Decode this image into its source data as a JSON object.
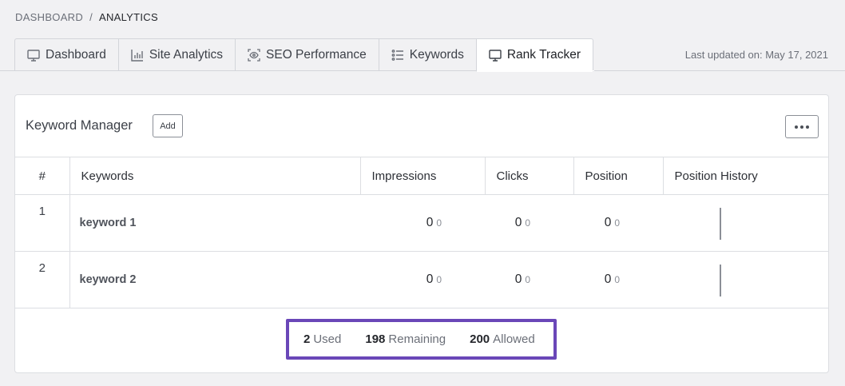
{
  "breadcrumb": {
    "parent": "DASHBOARD",
    "separator": "/",
    "current": "ANALYTICS"
  },
  "tabs": [
    {
      "label": "Dashboard",
      "icon": "monitor-icon"
    },
    {
      "label": "Site Analytics",
      "icon": "bar-chart-icon"
    },
    {
      "label": "SEO Performance",
      "icon": "eye-frame-icon"
    },
    {
      "label": "Keywords",
      "icon": "list-icon"
    },
    {
      "label": "Rank Tracker",
      "icon": "monitor-icon",
      "active": true
    }
  ],
  "last_updated": "Last updated on: May 17, 2021",
  "card": {
    "title": "Keyword Manager",
    "add_label": "Add",
    "more_icon": "more-dots-icon"
  },
  "table": {
    "headers": [
      "#",
      "Keywords",
      "Impressions",
      "Clicks",
      "Position",
      "Position History"
    ],
    "rows": [
      {
        "index": "1",
        "keyword": "keyword 1",
        "impressions": "0",
        "impressions_change": "0",
        "clicks": "0",
        "clicks_change": "0",
        "position": "0",
        "position_change": "0"
      },
      {
        "index": "2",
        "keyword": "keyword 2",
        "impressions": "0",
        "impressions_change": "0",
        "clicks": "0",
        "clicks_change": "0",
        "position": "0",
        "position_change": "0"
      }
    ]
  },
  "summary": {
    "used_count": "2",
    "used_label": "Used",
    "remaining_count": "198",
    "remaining_label": "Remaining",
    "allowed_count": "200",
    "allowed_label": "Allowed"
  },
  "colors": {
    "highlight_border": "#6a47b8",
    "background": "#f1f1f3"
  }
}
